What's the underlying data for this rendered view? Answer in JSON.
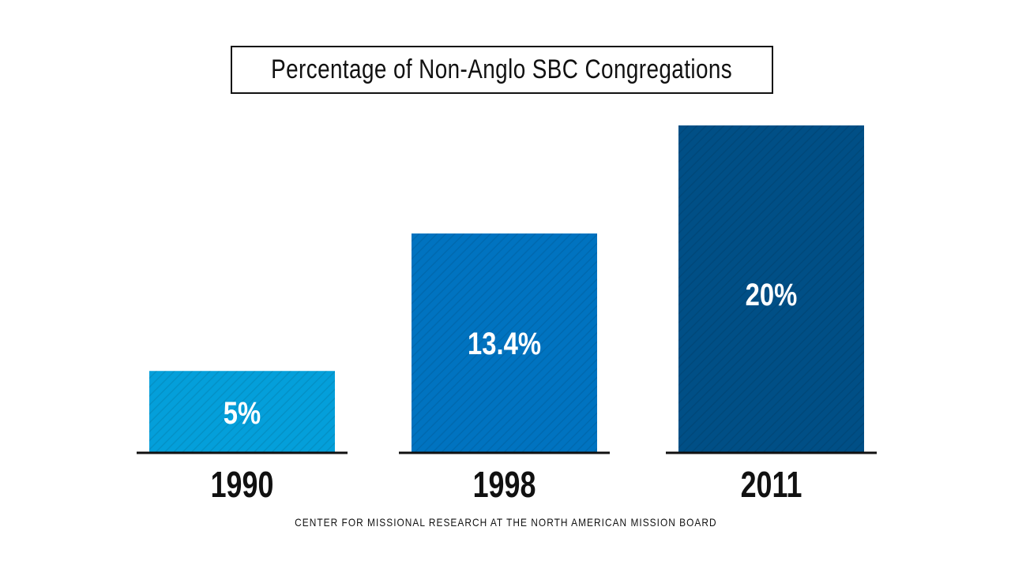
{
  "chart_data": {
    "type": "bar",
    "title": "Percentage of Non-Anglo SBC Congregations",
    "categories": [
      "1990",
      "1998",
      "2011"
    ],
    "values": [
      5,
      13.4,
      20
    ],
    "data_labels": [
      "5%",
      "13.4%",
      "20%"
    ],
    "ylim": [
      0,
      20
    ],
    "xlabel": "",
    "ylabel": "",
    "grid": false,
    "legend": "none",
    "colors": [
      "#049fda",
      "#0073c0",
      "#004f86"
    ],
    "source": "CENTER FOR MISSIONAL RESEARCH AT THE NORTH AMERICAN MISSION BOARD"
  }
}
